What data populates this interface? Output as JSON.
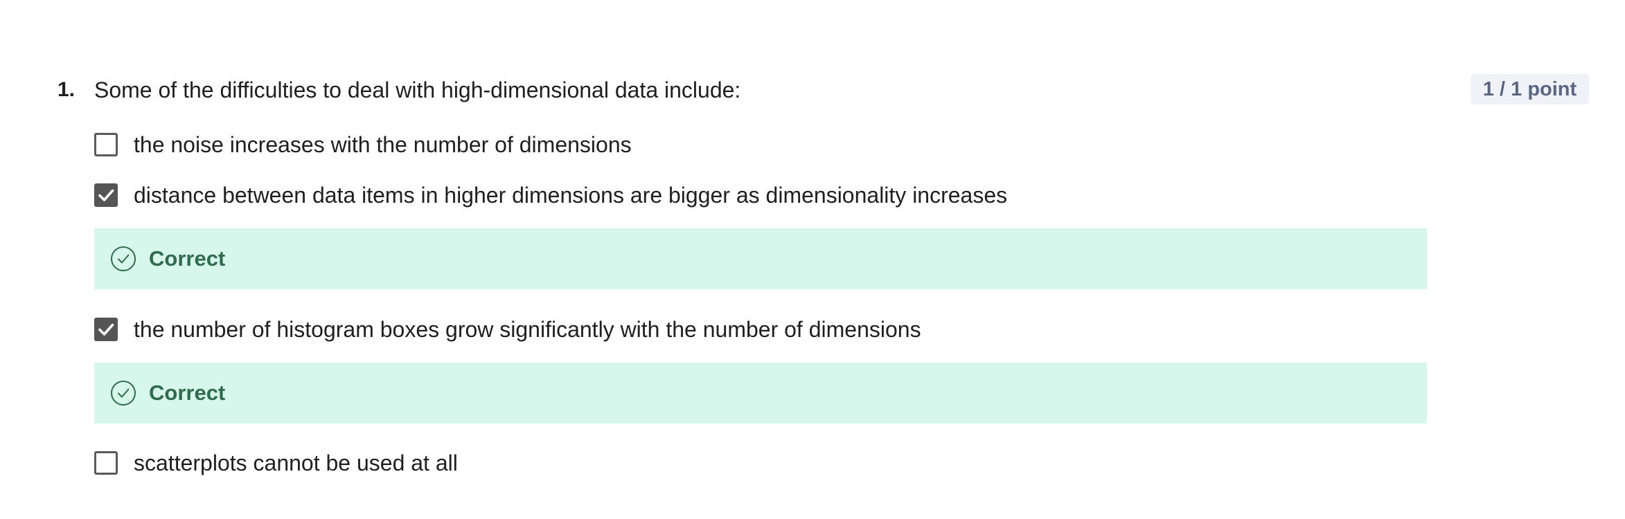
{
  "question": {
    "number": "1.",
    "text": "Some of the difficulties to deal with high-dimensional data include:",
    "points": "1 / 1 point"
  },
  "options": [
    {
      "label": "the noise increases with the number of dimensions",
      "checked": false
    },
    {
      "label": "distance between data items in higher dimensions are bigger as dimensionality increases",
      "checked": true,
      "feedback": "Correct"
    },
    {
      "label": "the number of histogram boxes grow significantly with the number of dimensions",
      "checked": true,
      "feedback": "Correct"
    },
    {
      "label": "scatterplots cannot be used at all",
      "checked": false
    }
  ],
  "colors": {
    "feedback_bg": "#d8f7ec",
    "feedback_text": "#2f6b4c",
    "checkbox_checked": "#555555",
    "badge_bg": "#f0f2f7",
    "badge_text": "#5b6780"
  },
  "icons": {
    "checkmark": "checkmark-icon",
    "correct": "check-circle-icon"
  }
}
